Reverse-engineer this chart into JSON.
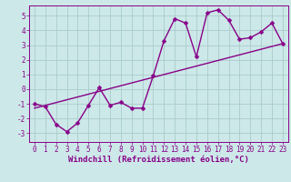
{
  "bg_color": "#cce8e8",
  "grid_color": "#aacccc",
  "line_color": "#880088",
  "marker": "D",
  "markersize": 2.5,
  "linewidth": 1.0,
  "xlabel": "Windchill (Refroidissement éolien,°C)",
  "xlabel_fontsize": 6.5,
  "tick_fontsize": 5.5,
  "xlim": [
    -0.5,
    23.5
  ],
  "ylim": [
    -3.6,
    5.7
  ],
  "yticks": [
    -3,
    -2,
    -1,
    0,
    1,
    2,
    3,
    4,
    5
  ],
  "xticks": [
    0,
    1,
    2,
    3,
    4,
    5,
    6,
    7,
    8,
    9,
    10,
    11,
    12,
    13,
    14,
    15,
    16,
    17,
    18,
    19,
    20,
    21,
    22,
    23
  ],
  "series1_x": [
    0,
    1,
    2,
    3,
    4,
    5,
    6,
    7,
    8,
    9,
    10,
    11,
    12,
    13,
    14,
    15,
    16,
    17,
    18,
    19,
    20,
    21,
    22,
    23
  ],
  "series1_y": [
    -1.0,
    -1.2,
    -2.4,
    -2.9,
    -2.3,
    -1.1,
    0.1,
    -1.1,
    -0.9,
    -1.3,
    -1.3,
    0.9,
    3.3,
    4.8,
    4.5,
    2.2,
    5.2,
    5.4,
    4.7,
    3.4,
    3.5,
    3.9,
    4.5,
    3.1
  ],
  "series2_x": [
    0,
    23
  ],
  "series2_y": [
    -1.3,
    3.1
  ]
}
